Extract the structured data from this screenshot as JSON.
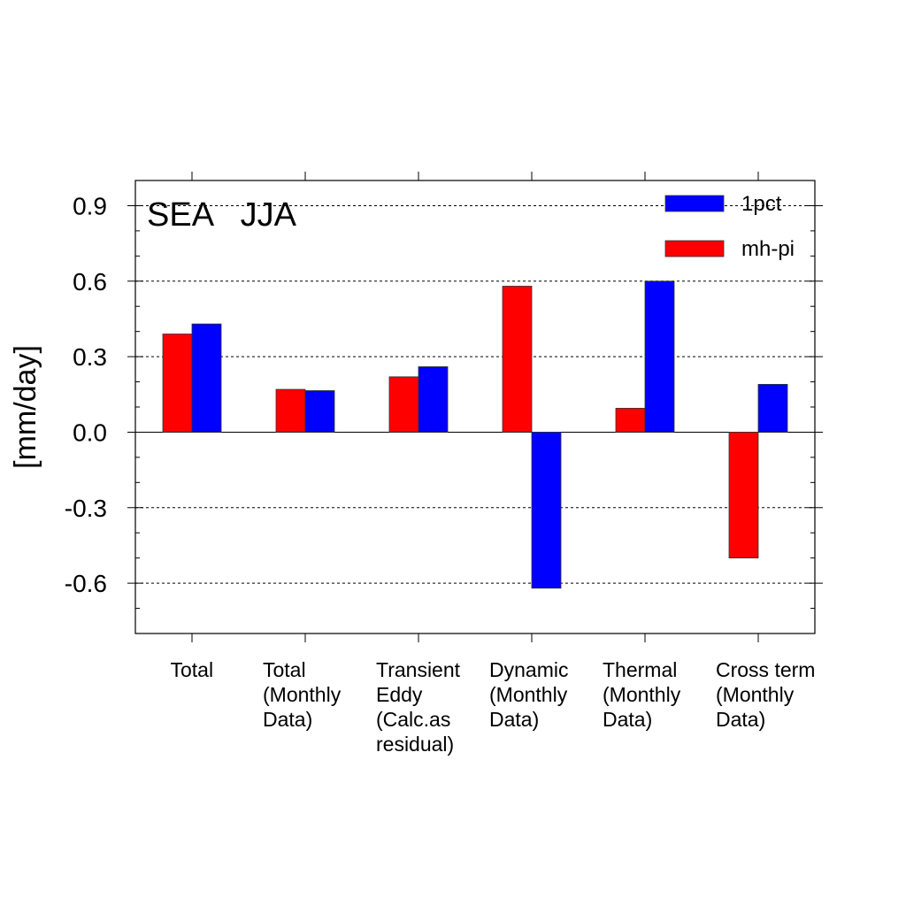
{
  "chart_data": {
    "type": "bar",
    "panel_label": "SEA   JJA",
    "ylabel": "[mm/day]",
    "ylim": [
      -0.8,
      1.0
    ],
    "yticks": [
      -0.6,
      -0.3,
      0.0,
      0.3,
      0.6,
      0.9
    ],
    "ytick_labels": [
      "-0.6",
      "-0.3",
      "0.0",
      "0.3",
      "0.6",
      "0.9"
    ],
    "grid": "horizontal dashed at major ticks",
    "legend_position": "top-right",
    "categories": [
      "Total",
      "Total\n(Monthly\nData)",
      "Transient\nEddy\n(Calc.as\nresidual)",
      "Dynamic\n(Monthly\nData)",
      "Thermal\n(Monthly\nData)",
      "Cross term\n(Monthly\nData)"
    ],
    "series": [
      {
        "name": "mh-pi",
        "color": "#ff0000",
        "values": [
          0.39,
          0.17,
          0.22,
          0.58,
          0.095,
          -0.5
        ]
      },
      {
        "name": "1pct",
        "color": "#0000ff",
        "values": [
          0.43,
          0.165,
          0.26,
          -0.62,
          0.6,
          0.19
        ]
      }
    ],
    "legend": [
      {
        "name": "1pct",
        "color": "#0000ff"
      },
      {
        "name": "mh-pi",
        "color": "#ff0000"
      }
    ]
  }
}
